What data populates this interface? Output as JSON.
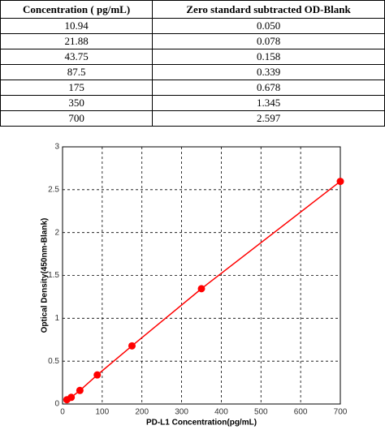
{
  "table": {
    "header": [
      "Concentration ( pg/mL)",
      "Zero standard subtracted OD-Blank"
    ],
    "rows": [
      [
        "10.94",
        "0.050"
      ],
      [
        "21.88",
        "0.078"
      ],
      [
        "43.75",
        "0.158"
      ],
      [
        "87.5",
        "0.339"
      ],
      [
        "175",
        "0.678"
      ],
      [
        "350",
        "1.345"
      ],
      [
        "700",
        "2.597"
      ]
    ]
  },
  "chart_data": {
    "type": "line",
    "xlabel": "PD-L1 Concentration(pg/mL)",
    "ylabel": "Optical Density(450nm-Blank)",
    "x": [
      10.94,
      21.88,
      43.75,
      87.5,
      175,
      350,
      700
    ],
    "series": [
      {
        "color": "#ff0000",
        "values": [
          0.05,
          0.078,
          0.158,
          0.339,
          0.678,
          1.345,
          2.597
        ]
      }
    ],
    "xlim": [
      0,
      700
    ],
    "xticks": [
      0,
      100,
      200,
      300,
      400,
      500,
      600,
      700
    ],
    "ylim": [
      0,
      3
    ],
    "yticks": [
      0,
      0.5,
      1,
      1.5,
      2,
      2.5,
      3
    ],
    "grid": true
  }
}
